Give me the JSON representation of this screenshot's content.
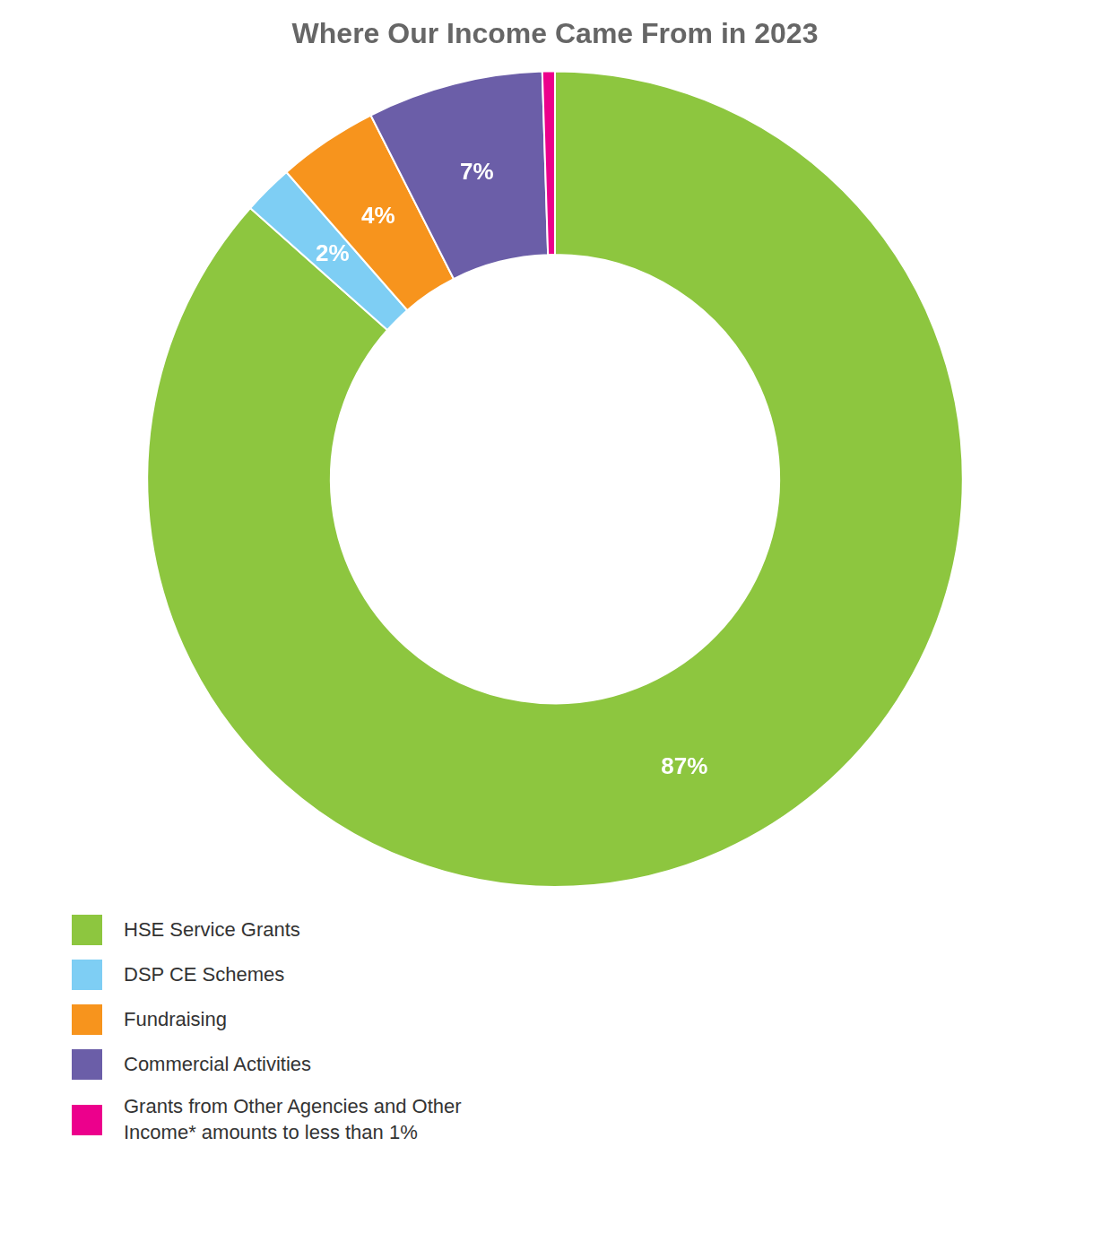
{
  "chart_data": {
    "type": "doughnut",
    "title": "Where Our Income Came From in 2023",
    "categories": [
      "HSE Service Grants",
      "DSP CE Schemes",
      "Fundraising",
      "Commercial Activities",
      "Grants from Other Agencies and Other\nIncome* amounts to less than 1%"
    ],
    "values": [
      87,
      2,
      4,
      7,
      0.5
    ],
    "colors": [
      "#8dc63f",
      "#7ecef4",
      "#f7941d",
      "#6b5ea8",
      "#ec008c"
    ],
    "data_labels": true,
    "value_labels": [
      "87%",
      "2%",
      "4%",
      "7%",
      null
    ],
    "legend": "bottom"
  }
}
